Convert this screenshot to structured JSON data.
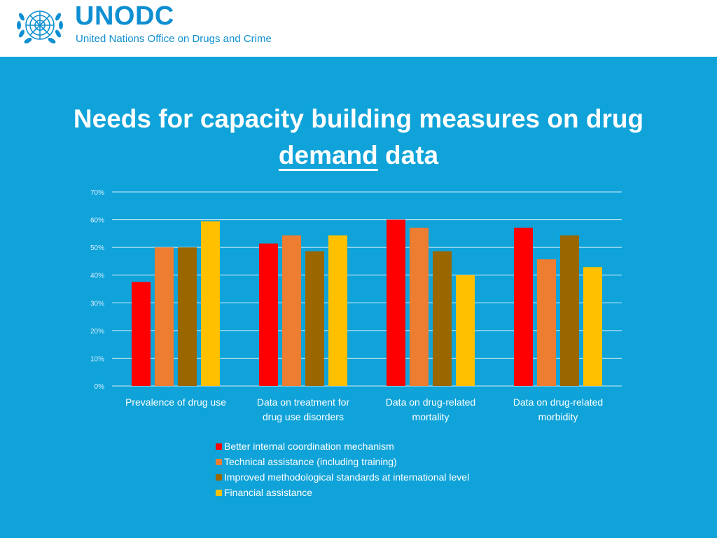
{
  "header": {
    "logo_text": "UNODC",
    "logo_subtitle": "United Nations Office on Drugs and Crime"
  },
  "slide": {
    "title_line1": "Needs for capacity building measures on drug",
    "title_underlined": "demand",
    "title_rest": " data"
  },
  "chart_data": {
    "type": "bar",
    "title": "Needs for capacity building measures on drug demand data",
    "xlabel": "",
    "ylabel": "",
    "ylim": [
      0,
      70
    ],
    "yticks": [
      0,
      10,
      20,
      30,
      40,
      50,
      60,
      70
    ],
    "ytick_labels": [
      "0%",
      "10%",
      "20%",
      "30%",
      "40%",
      "50%",
      "60%",
      "70%"
    ],
    "grid": true,
    "categories": [
      [
        "Prevalence of drug use"
      ],
      [
        "Data on treatment for",
        "drug use disorders"
      ],
      [
        "Data on drug-related",
        "mortality"
      ],
      [
        "Data on drug-related",
        "morbidity"
      ]
    ],
    "series": [
      {
        "name": "Better internal coordination mechanism",
        "color": "#ff0000",
        "values": [
          37.5,
          51.4,
          60.0,
          57.1
        ]
      },
      {
        "name": "Technical assistance (including training)",
        "color": "#ed7d31",
        "values": [
          50.0,
          54.3,
          57.1,
          45.7
        ]
      },
      {
        "name": "Improved methodological standards at international level",
        "color": "#996600",
        "values": [
          50.0,
          48.6,
          48.6,
          54.3
        ]
      },
      {
        "name": "Financial assistance",
        "color": "#ffc000",
        "values": [
          59.4,
          54.3,
          40.0,
          42.9
        ]
      }
    ],
    "legend_position": "bottom"
  },
  "colors": {
    "background": "#0fa3d9",
    "brand": "#0f8fd2"
  }
}
